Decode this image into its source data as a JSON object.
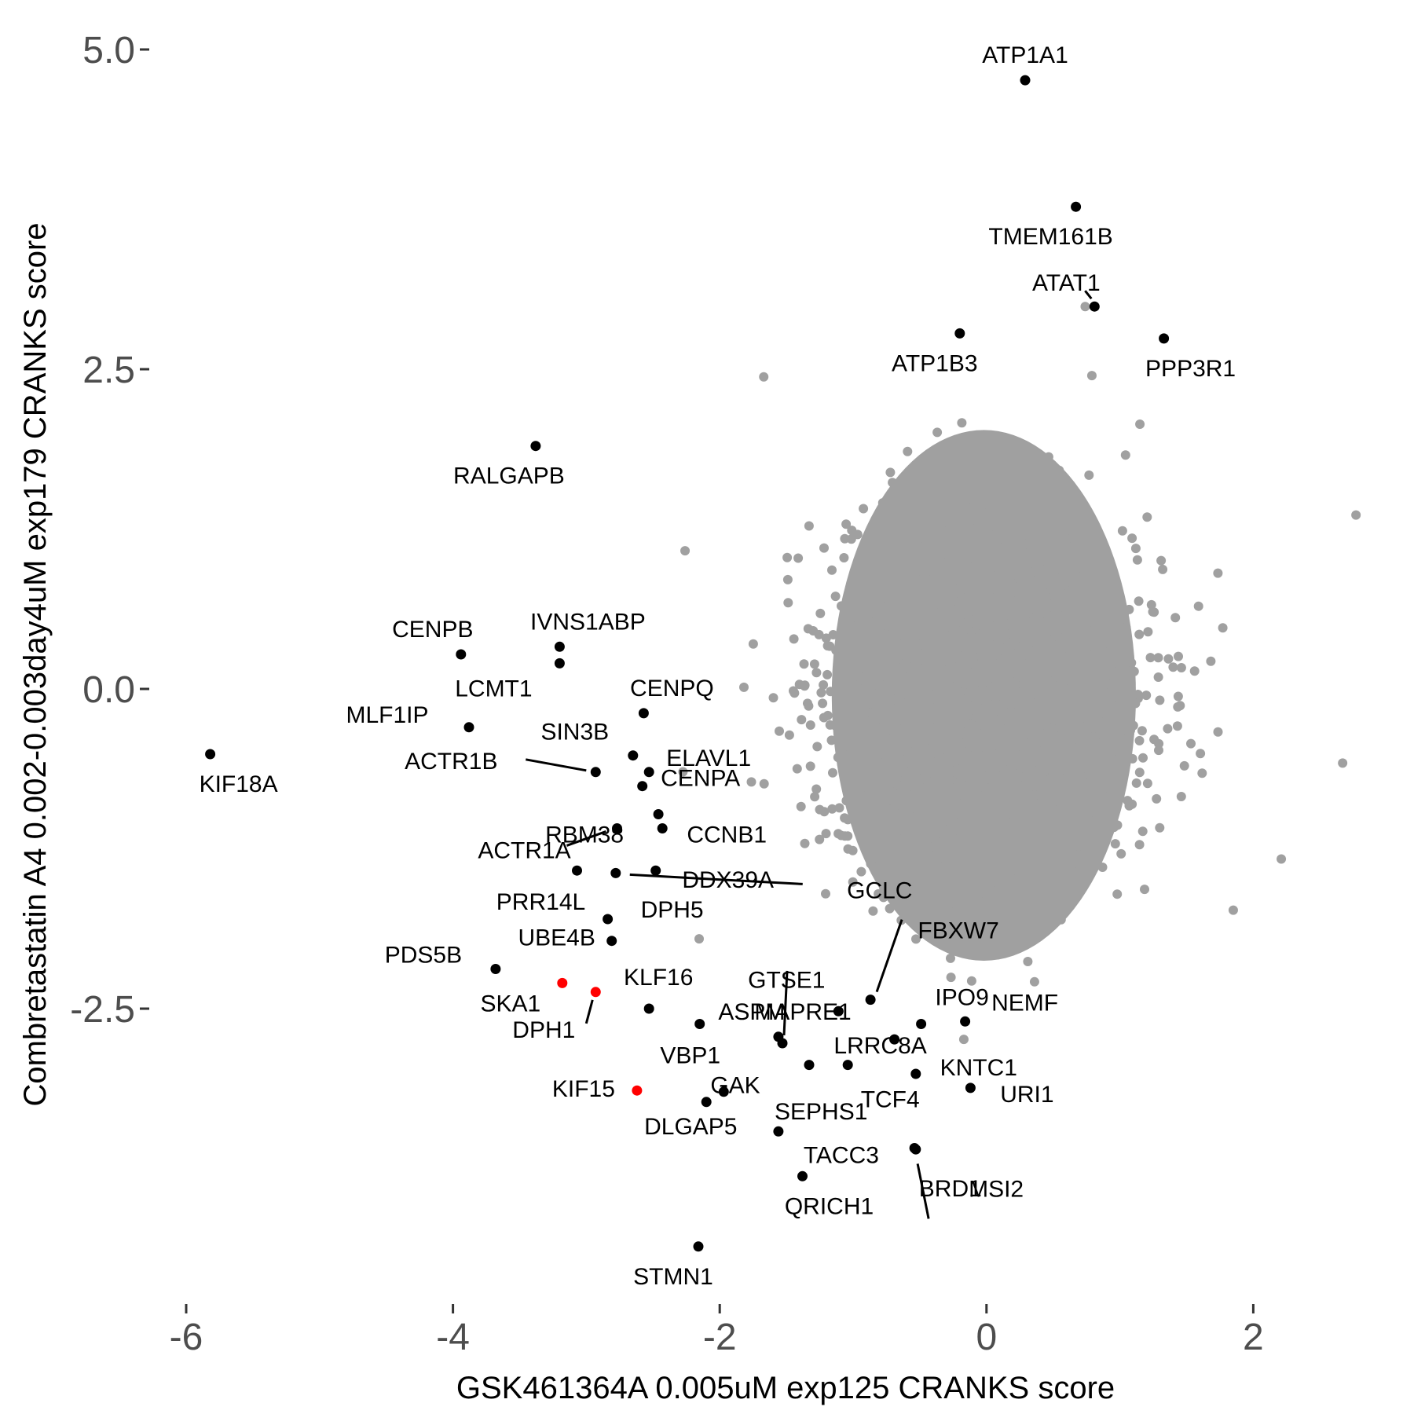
{
  "chart_data": {
    "type": "scatter",
    "xlabel": "GSK461364A 0.005uM exp125 CRANKS score",
    "ylabel": "Combretastatin A4 0.002-0.003day4uM exp179 CRANKS score",
    "xlim": [
      -6.2,
      2.95
    ],
    "ylim": [
      -4.9,
      5.28
    ],
    "x_ticks": [
      -6,
      -4,
      -2,
      0,
      2
    ],
    "y_ticks": [
      -2.5,
      0.0,
      2.5,
      5.0
    ],
    "x_tick_labels": [
      "-6",
      "-4",
      "-2",
      "0",
      "2"
    ],
    "y_tick_labels": [
      "-2.5",
      "0.0",
      "2.5",
      "5.0"
    ],
    "grid": false,
    "legend": "none",
    "colors": {
      "background": "#cfcfcf",
      "highlight": "#000000",
      "hit": "#ff0000",
      "axis_text": "#4d4d4d"
    },
    "background_cloud": {
      "color": "#a0a0a0",
      "description_points": [
        {
          "x": -1.67,
          "y": 2.44
        },
        {
          "x": 0.79,
          "y": 2.45
        },
        {
          "x": 1.15,
          "y": 2.07
        },
        {
          "x": 2.77,
          "y": 1.36
        },
        {
          "x": 2.67,
          "y": -0.58
        },
        {
          "x": 1.85,
          "y": -1.73
        },
        {
          "x": 2.21,
          "y": -1.33
        },
        {
          "x": -2.26,
          "y": 1.08
        },
        {
          "x": -0.17,
          "y": -2.74
        },
        {
          "x": 0.36,
          "y": -2.29
        },
        {
          "x": 0.74,
          "y": 2.99
        }
      ]
    },
    "points": [
      {
        "gene": "ATP1A1",
        "x": 0.29,
        "y": 4.76,
        "color": "#000000"
      },
      {
        "gene": "TMEM161B",
        "x": 0.67,
        "y": 3.77,
        "color": "#000000"
      },
      {
        "gene": "ATAT1",
        "x": 0.81,
        "y": 2.99,
        "color": "#000000"
      },
      {
        "gene": "ATP1B3",
        "x": -0.2,
        "y": 2.78,
        "color": "#000000"
      },
      {
        "gene": "PPP3R1",
        "x": 1.33,
        "y": 2.74,
        "color": "#000000"
      },
      {
        "gene": "RALGAPB",
        "x": -3.38,
        "y": 1.9,
        "color": "#000000"
      },
      {
        "gene": "CENPB",
        "x": -3.94,
        "y": 0.27,
        "color": "#000000"
      },
      {
        "gene": "IVNS1ABP",
        "x": -3.2,
        "y": 0.33,
        "color": "#000000"
      },
      {
        "gene": "LCMT1",
        "x": -3.2,
        "y": 0.2,
        "color": "#000000"
      },
      {
        "gene": "MLF1IP",
        "x": -3.88,
        "y": -0.3,
        "color": "#000000"
      },
      {
        "gene": "CENPQ",
        "x": -2.57,
        "y": -0.19,
        "color": "#000000"
      },
      {
        "gene": "KIF18A",
        "x": -5.82,
        "y": -0.51,
        "color": "#000000"
      },
      {
        "gene": "SIN3B",
        "x": -2.65,
        "y": -0.52,
        "color": "#000000"
      },
      {
        "gene": "ELAVL1",
        "x": -2.53,
        "y": -0.65,
        "color": "#000000"
      },
      {
        "gene": "ACTR1B",
        "x": -2.93,
        "y": -0.65,
        "color": "#000000"
      },
      {
        "gene": "CENPA",
        "x": -2.58,
        "y": -0.76,
        "color": "#000000"
      },
      {
        "gene": "RBM38",
        "x": -2.46,
        "y": -0.98,
        "color": "#000000"
      },
      {
        "gene": "CCNB1",
        "x": -2.43,
        "y": -1.09,
        "color": "#000000"
      },
      {
        "gene": "ACTR1A",
        "x": -2.77,
        "y": -1.09,
        "color": "#000000"
      },
      {
        "gene": "PRR14L",
        "x": -3.07,
        "y": -1.42,
        "color": "#000000"
      },
      {
        "gene": "DDX39A",
        "x": -2.48,
        "y": -1.42,
        "color": "#000000"
      },
      {
        "gene": "GCLC",
        "x": -2.78,
        "y": -1.44,
        "color": "#000000"
      },
      {
        "gene": "DPH5",
        "x": -2.84,
        "y": -1.8,
        "color": "#000000"
      },
      {
        "gene": "UBE4B",
        "x": -2.81,
        "y": -1.97,
        "color": "#000000"
      },
      {
        "gene": "PDS5B",
        "x": -3.68,
        "y": -2.19,
        "color": "#000000"
      },
      {
        "gene": "SKA1",
        "x": -3.18,
        "y": -2.3,
        "color": "#ff0000"
      },
      {
        "gene": "DPH1",
        "x": -2.93,
        "y": -2.37,
        "color": "#ff0000"
      },
      {
        "gene": "KLF16",
        "x": -2.53,
        "y": -2.5,
        "color": "#000000"
      },
      {
        "gene": "VBP1",
        "x": -2.15,
        "y": -2.62,
        "color": "#000000"
      },
      {
        "gene": "KIF15",
        "x": -2.62,
        "y": -3.14,
        "color": "#ff0000"
      },
      {
        "gene": "MAPRE1",
        "x": -1.53,
        "y": -2.77,
        "color": "#000000"
      },
      {
        "gene": "ASPM",
        "x": -1.56,
        "y": -2.72,
        "color": "#000000"
      },
      {
        "gene": "FBXW7",
        "x": -0.87,
        "y": -2.43,
        "color": "#000000"
      },
      {
        "gene": "GTSE1",
        "x": -1.11,
        "y": -2.52,
        "color": "#000000"
      },
      {
        "gene": "LRRC8A",
        "x": -0.69,
        "y": -2.74,
        "color": "#000000"
      },
      {
        "gene": "IPO9",
        "x": -0.49,
        "y": -2.62,
        "color": "#000000"
      },
      {
        "gene": "NEMF",
        "x": -0.16,
        "y": -2.6,
        "color": "#000000"
      },
      {
        "gene": "KNTC1",
        "x": -0.53,
        "y": -3.01,
        "color": "#000000"
      },
      {
        "gene": "GAK",
        "x": -1.33,
        "y": -2.94,
        "color": "#000000"
      },
      {
        "gene": "TCF4",
        "x": -1.04,
        "y": -2.94,
        "color": "#000000"
      },
      {
        "gene": "URI1",
        "x": -0.12,
        "y": -3.12,
        "color": "#000000"
      },
      {
        "gene": "DLGAP5",
        "x": -1.97,
        "y": -3.15,
        "color": "#000000"
      },
      {
        "gene": "SEPHS1",
        "x": -2.1,
        "y": -3.23,
        "color": "#000000"
      },
      {
        "gene": "TACC3",
        "x": -1.56,
        "y": -3.46,
        "color": "#000000"
      },
      {
        "gene": "MSI2",
        "x": -0.54,
        "y": -3.59,
        "color": "#000000"
      },
      {
        "gene": "BRD1",
        "x": -0.53,
        "y": -3.6,
        "color": "#000000"
      },
      {
        "gene": "QRICH1",
        "x": -1.38,
        "y": -3.81,
        "color": "#000000"
      },
      {
        "gene": "STMN1",
        "x": -2.16,
        "y": -4.36,
        "color": "#000000"
      }
    ]
  }
}
